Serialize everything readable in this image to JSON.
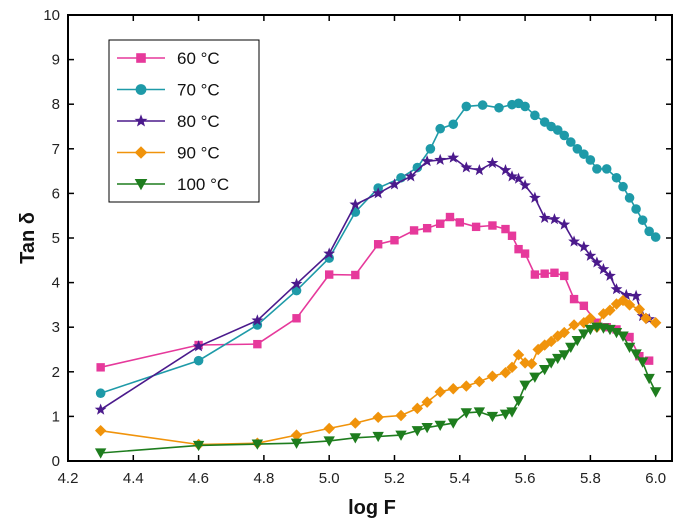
{
  "chart_data": {
    "type": "line",
    "xlabel": "log F",
    "ylabel": "Tan δ",
    "xlim": [
      4.2,
      6.05
    ],
    "ylim": [
      0,
      10
    ],
    "x_ticks": [
      "4.2",
      "4.4",
      "4.6",
      "4.8",
      "5.0",
      "5.2",
      "5.4",
      "5.6",
      "5.8",
      "6.0"
    ],
    "y_ticks": [
      "0",
      "1",
      "2",
      "3",
      "4",
      "5",
      "6",
      "7",
      "8",
      "9",
      "10"
    ],
    "grid": false,
    "legend_position": "top-left",
    "series": [
      {
        "name": "60 °C",
        "color": "#e6399b",
        "marker": "square",
        "points": [
          [
            4.3,
            2.1
          ],
          [
            4.6,
            2.6
          ],
          [
            4.78,
            2.62
          ],
          [
            4.9,
            3.2
          ],
          [
            5.0,
            4.18
          ],
          [
            5.08,
            4.17
          ],
          [
            5.15,
            4.86
          ],
          [
            5.2,
            4.95
          ],
          [
            5.26,
            5.17
          ],
          [
            5.3,
            5.22
          ],
          [
            5.34,
            5.32
          ],
          [
            5.37,
            5.47
          ],
          [
            5.4,
            5.35
          ],
          [
            5.45,
            5.25
          ],
          [
            5.5,
            5.28
          ],
          [
            5.54,
            5.2
          ],
          [
            5.56,
            5.05
          ],
          [
            5.58,
            4.75
          ],
          [
            5.6,
            4.65
          ],
          [
            5.63,
            4.18
          ],
          [
            5.66,
            4.2
          ],
          [
            5.69,
            4.22
          ],
          [
            5.72,
            4.15
          ],
          [
            5.75,
            3.63
          ],
          [
            5.78,
            3.48
          ],
          [
            5.82,
            3.1
          ],
          [
            5.85,
            3.0
          ],
          [
            5.88,
            2.95
          ],
          [
            5.92,
            2.78
          ],
          [
            5.95,
            2.35
          ],
          [
            5.98,
            2.25
          ]
        ]
      },
      {
        "name": "70 °C",
        "color": "#1e9aa8",
        "marker": "circle",
        "points": [
          [
            4.3,
            1.52
          ],
          [
            4.6,
            2.25
          ],
          [
            4.78,
            3.05
          ],
          [
            4.9,
            3.82
          ],
          [
            5.0,
            4.55
          ],
          [
            5.08,
            5.58
          ],
          [
            5.15,
            6.12
          ],
          [
            5.22,
            6.35
          ],
          [
            5.27,
            6.58
          ],
          [
            5.31,
            7.0
          ],
          [
            5.34,
            7.45
          ],
          [
            5.38,
            7.55
          ],
          [
            5.42,
            7.95
          ],
          [
            5.47,
            7.98
          ],
          [
            5.52,
            7.92
          ],
          [
            5.56,
            7.99
          ],
          [
            5.58,
            8.02
          ],
          [
            5.6,
            7.95
          ],
          [
            5.63,
            7.75
          ],
          [
            5.66,
            7.6
          ],
          [
            5.68,
            7.5
          ],
          [
            5.7,
            7.42
          ],
          [
            5.72,
            7.3
          ],
          [
            5.74,
            7.15
          ],
          [
            5.76,
            7.0
          ],
          [
            5.78,
            6.88
          ],
          [
            5.8,
            6.75
          ],
          [
            5.82,
            6.55
          ],
          [
            5.85,
            6.55
          ],
          [
            5.88,
            6.35
          ],
          [
            5.9,
            6.15
          ],
          [
            5.92,
            5.9
          ],
          [
            5.94,
            5.65
          ],
          [
            5.96,
            5.4
          ],
          [
            5.98,
            5.15
          ],
          [
            6.0,
            5.02
          ]
        ]
      },
      {
        "name": "80 °C",
        "color": "#4b1a8c",
        "marker": "star",
        "points": [
          [
            4.3,
            1.15
          ],
          [
            4.6,
            2.57
          ],
          [
            4.78,
            3.15
          ],
          [
            4.9,
            3.97
          ],
          [
            5.0,
            4.65
          ],
          [
            5.08,
            5.75
          ],
          [
            5.15,
            6.0
          ],
          [
            5.2,
            6.2
          ],
          [
            5.25,
            6.38
          ],
          [
            5.3,
            6.72
          ],
          [
            5.34,
            6.75
          ],
          [
            5.38,
            6.8
          ],
          [
            5.42,
            6.58
          ],
          [
            5.46,
            6.52
          ],
          [
            5.5,
            6.68
          ],
          [
            5.54,
            6.52
          ],
          [
            5.56,
            6.38
          ],
          [
            5.58,
            6.33
          ],
          [
            5.6,
            6.18
          ],
          [
            5.63,
            5.9
          ],
          [
            5.66,
            5.45
          ],
          [
            5.69,
            5.42
          ],
          [
            5.72,
            5.3
          ],
          [
            5.75,
            4.92
          ],
          [
            5.78,
            4.8
          ],
          [
            5.8,
            4.6
          ],
          [
            5.82,
            4.45
          ],
          [
            5.84,
            4.3
          ],
          [
            5.86,
            4.15
          ],
          [
            5.88,
            3.85
          ],
          [
            5.91,
            3.72
          ],
          [
            5.94,
            3.7
          ],
          [
            5.96,
            3.25
          ],
          [
            5.98,
            3.18
          ]
        ]
      },
      {
        "name": "90 °C",
        "color": "#f0930b",
        "marker": "diamond",
        "points": [
          [
            4.3,
            0.68
          ],
          [
            4.6,
            0.37
          ],
          [
            4.78,
            0.4
          ],
          [
            4.9,
            0.58
          ],
          [
            5.0,
            0.73
          ],
          [
            5.08,
            0.85
          ],
          [
            5.15,
            0.98
          ],
          [
            5.22,
            1.02
          ],
          [
            5.27,
            1.18
          ],
          [
            5.3,
            1.32
          ],
          [
            5.34,
            1.55
          ],
          [
            5.38,
            1.62
          ],
          [
            5.42,
            1.68
          ],
          [
            5.46,
            1.78
          ],
          [
            5.5,
            1.9
          ],
          [
            5.54,
            1.98
          ],
          [
            5.56,
            2.1
          ],
          [
            5.58,
            2.38
          ],
          [
            5.6,
            2.2
          ],
          [
            5.62,
            2.18
          ],
          [
            5.64,
            2.5
          ],
          [
            5.66,
            2.6
          ],
          [
            5.68,
            2.68
          ],
          [
            5.7,
            2.8
          ],
          [
            5.72,
            2.88
          ],
          [
            5.75,
            3.05
          ],
          [
            5.78,
            3.1
          ],
          [
            5.8,
            3.2
          ],
          [
            5.82,
            3.0
          ],
          [
            5.84,
            3.3
          ],
          [
            5.86,
            3.38
          ],
          [
            5.88,
            3.52
          ],
          [
            5.9,
            3.6
          ],
          [
            5.92,
            3.5
          ],
          [
            5.95,
            3.4
          ],
          [
            5.97,
            3.2
          ],
          [
            6.0,
            3.1
          ]
        ]
      },
      {
        "name": "100 °C",
        "color": "#1e7d1e",
        "marker": "triangle-down",
        "points": [
          [
            4.3,
            0.18
          ],
          [
            4.6,
            0.35
          ],
          [
            4.78,
            0.38
          ],
          [
            4.9,
            0.4
          ],
          [
            5.0,
            0.45
          ],
          [
            5.08,
            0.52
          ],
          [
            5.15,
            0.55
          ],
          [
            5.22,
            0.58
          ],
          [
            5.27,
            0.68
          ],
          [
            5.3,
            0.75
          ],
          [
            5.34,
            0.8
          ],
          [
            5.38,
            0.85
          ],
          [
            5.42,
            1.08
          ],
          [
            5.46,
            1.1
          ],
          [
            5.5,
            1.0
          ],
          [
            5.54,
            1.05
          ],
          [
            5.56,
            1.1
          ],
          [
            5.58,
            1.35
          ],
          [
            5.6,
            1.7
          ],
          [
            5.63,
            1.88
          ],
          [
            5.66,
            2.05
          ],
          [
            5.68,
            2.2
          ],
          [
            5.7,
            2.3
          ],
          [
            5.72,
            2.38
          ],
          [
            5.74,
            2.55
          ],
          [
            5.76,
            2.7
          ],
          [
            5.78,
            2.85
          ],
          [
            5.8,
            2.95
          ],
          [
            5.82,
            3.0
          ],
          [
            5.84,
            2.98
          ],
          [
            5.86,
            2.95
          ],
          [
            5.88,
            2.88
          ],
          [
            5.9,
            2.8
          ],
          [
            5.92,
            2.55
          ],
          [
            5.94,
            2.4
          ],
          [
            5.96,
            2.22
          ],
          [
            5.98,
            1.85
          ],
          [
            6.0,
            1.55
          ]
        ]
      }
    ]
  }
}
